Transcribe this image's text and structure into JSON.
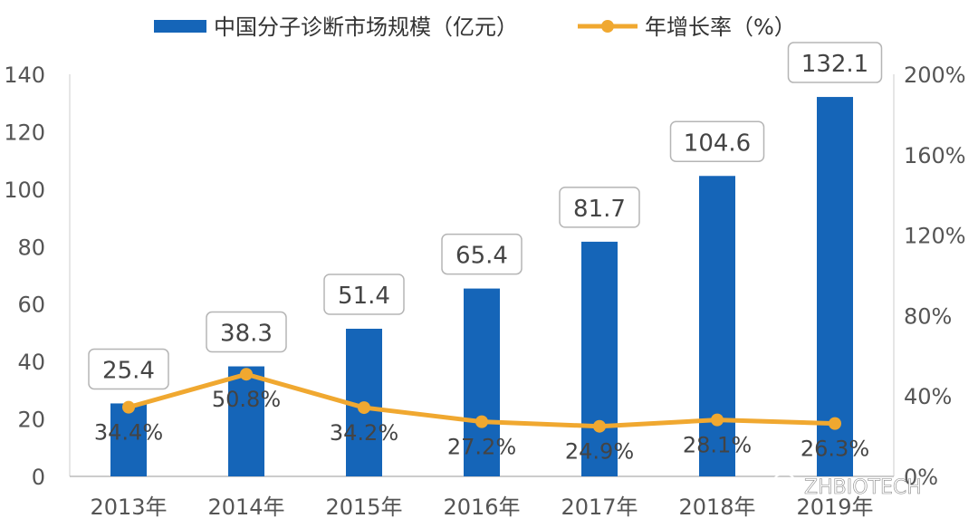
{
  "chart_data": {
    "type": "bar",
    "categories": [
      "2013年",
      "2014年",
      "2015年",
      "2016年",
      "2017年",
      "2018年",
      "2019年"
    ],
    "series": [
      {
        "name": "中国分子诊断市场规模（亿元）",
        "type": "bar",
        "axis": "left",
        "values": [
          25.4,
          38.3,
          51.4,
          65.4,
          81.7,
          104.6,
          132.1
        ],
        "labels": [
          "25.4",
          "38.3",
          "51.4",
          "65.4",
          "81.7",
          "104.6",
          "132.1"
        ],
        "color": "#1565B8"
      },
      {
        "name": "年增长率（%）",
        "type": "line",
        "axis": "right",
        "values": [
          34.4,
          50.8,
          34.2,
          27.2,
          24.9,
          28.1,
          26.3
        ],
        "labels": [
          "34.4%",
          "50.8%",
          "34.2%",
          "27.2%",
          "24.9%",
          "28.1%",
          "26.3%"
        ],
        "color": "#F0A830"
      }
    ],
    "ylim_left": [
      0,
      140
    ],
    "yticks_left": [
      "0",
      "20",
      "40",
      "60",
      "80",
      "100",
      "120",
      "140"
    ],
    "ylim_right": [
      0,
      200
    ],
    "yticks_right": [
      "0%",
      "40%",
      "80%",
      "120%",
      "160%",
      "200%"
    ],
    "grid": false,
    "legend_position": "top"
  },
  "watermark": "ZHBIOTECH"
}
